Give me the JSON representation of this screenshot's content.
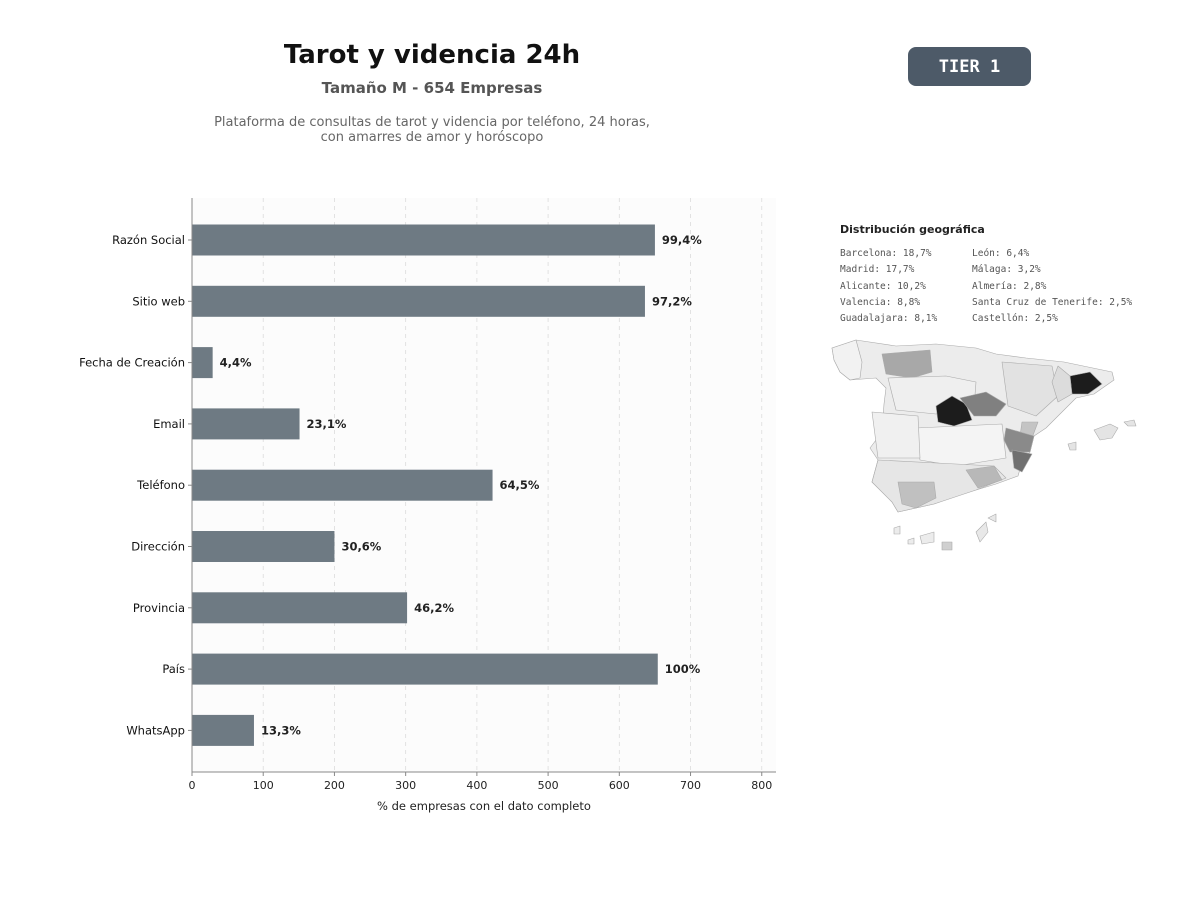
{
  "header": {
    "title": "Tarot y videncia 24h",
    "subtitle": "Tamaño M - 654 Empresas",
    "description_line1": "Plataforma de consultas de tarot y videncia por teléfono, 24 horas,",
    "description_line2": "con amarres de amor y horóscopo",
    "tier": "TIER 1"
  },
  "chart_data": {
    "type": "bar",
    "orientation": "horizontal",
    "categories": [
      "Razón Social",
      "Sitio web",
      "Fecha de Creación",
      "Email",
      "Teléfono",
      "Dirección",
      "Provincia",
      "País",
      "WhatsApp"
    ],
    "values": [
      650,
      636,
      29,
      151,
      422,
      200,
      302,
      654,
      87
    ],
    "data_labels": [
      "99,4%",
      "97,2%",
      "4,4%",
      "23,1%",
      "64,5%",
      "30,6%",
      "46,2%",
      "100%",
      "13,3%"
    ],
    "xlabel": "% de empresas con el dato completo",
    "ylabel": "",
    "xlim": [
      0,
      820
    ],
    "xticks": [
      0,
      100,
      200,
      300,
      400,
      500,
      600,
      700,
      800
    ],
    "grid": "vertical dashed",
    "bar_color": "#6e7a83"
  },
  "geo": {
    "title": "Distribución geográfica",
    "col1": [
      "Barcelona: 18,7%",
      "Madrid: 17,7%",
      "Alicante: 10,2%",
      "Valencia: 8,8%",
      "Guadalajara: 8,1%"
    ],
    "col2": [
      "León: 6,4%",
      "Málaga: 3,2%",
      "Almería: 2,8%",
      "Santa Cruz de Tenerife: 2,5%",
      "Castellón: 2,5%"
    ]
  }
}
